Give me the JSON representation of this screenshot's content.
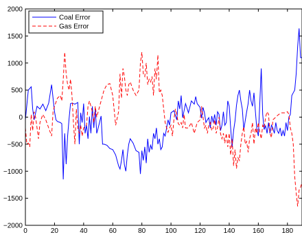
{
  "chart_data": {
    "type": "line",
    "title": "",
    "xlabel": "",
    "ylabel": "",
    "xlim": [
      0,
      190
    ],
    "ylim": [
      -2000,
      2000
    ],
    "xticks": [
      0,
      20,
      40,
      60,
      80,
      100,
      120,
      140,
      160,
      180
    ],
    "yticks": [
      -2000,
      -1500,
      -1000,
      -500,
      0,
      500,
      1000,
      1500,
      2000
    ],
    "grid": false,
    "legend_position": "top-left",
    "series": [
      {
        "name": "Coal Error",
        "color": "#0000ff",
        "style": "solid",
        "points": [
          [
            0,
            -50
          ],
          [
            2,
            500
          ],
          [
            4,
            560
          ],
          [
            5,
            150
          ],
          [
            6,
            -50
          ],
          [
            8,
            200
          ],
          [
            10,
            150
          ],
          [
            12,
            240
          ],
          [
            14,
            120
          ],
          [
            16,
            260
          ],
          [
            18,
            600
          ],
          [
            19,
            350
          ],
          [
            20,
            100
          ],
          [
            21,
            -50
          ],
          [
            22,
            -80
          ],
          [
            24,
            -100
          ],
          [
            25,
            -120
          ],
          [
            26,
            -1150
          ],
          [
            27,
            -300
          ],
          [
            28,
            -870
          ],
          [
            29,
            -350
          ],
          [
            30,
            -30
          ],
          [
            31,
            250
          ],
          [
            32,
            260
          ],
          [
            34,
            240
          ],
          [
            36,
            270
          ],
          [
            37,
            -500
          ],
          [
            38,
            80
          ],
          [
            39,
            -100
          ],
          [
            40,
            250
          ],
          [
            41,
            -300
          ],
          [
            42,
            -150
          ],
          [
            43,
            -400
          ],
          [
            44,
            10
          ],
          [
            45,
            -300
          ],
          [
            46,
            200
          ],
          [
            47,
            -200
          ],
          [
            48,
            150
          ],
          [
            49,
            -300
          ],
          [
            50,
            -200
          ],
          [
            52,
            20
          ],
          [
            53,
            -500
          ],
          [
            54,
            -500
          ],
          [
            56,
            -520
          ],
          [
            58,
            -580
          ],
          [
            60,
            -600
          ],
          [
            62,
            -700
          ],
          [
            64,
            -900
          ],
          [
            65,
            -960
          ],
          [
            66,
            -800
          ],
          [
            67,
            -600
          ],
          [
            68,
            -880
          ],
          [
            69,
            -1000
          ],
          [
            70,
            -700
          ],
          [
            71,
            -500
          ],
          [
            72,
            -400
          ],
          [
            74,
            -480
          ],
          [
            76,
            -620
          ],
          [
            78,
            -650
          ],
          [
            79,
            -1050
          ],
          [
            80,
            -620
          ],
          [
            81,
            -800
          ],
          [
            82,
            -550
          ],
          [
            83,
            -850
          ],
          [
            84,
            -400
          ],
          [
            85,
            -650
          ],
          [
            86,
            -520
          ],
          [
            87,
            -600
          ],
          [
            88,
            -300
          ],
          [
            89,
            -400
          ],
          [
            90,
            -200
          ],
          [
            91,
            -500
          ],
          [
            92,
            -400
          ],
          [
            93,
            -600
          ],
          [
            94,
            -550
          ],
          [
            95,
            -300
          ],
          [
            96,
            -350
          ],
          [
            97,
            -200
          ],
          [
            98,
            -50
          ],
          [
            99,
            -150
          ],
          [
            100,
            80
          ],
          [
            102,
            120
          ],
          [
            104,
            -50
          ],
          [
            105,
            300
          ],
          [
            106,
            150
          ],
          [
            107,
            400
          ],
          [
            108,
            -10
          ],
          [
            110,
            250
          ],
          [
            112,
            80
          ],
          [
            114,
            300
          ],
          [
            116,
            240
          ],
          [
            117,
            380
          ],
          [
            118,
            250
          ],
          [
            120,
            180
          ],
          [
            121,
            -20
          ],
          [
            122,
            180
          ],
          [
            123,
            80
          ],
          [
            124,
            -100
          ],
          [
            125,
            -50
          ],
          [
            126,
            -10
          ],
          [
            127,
            -200
          ],
          [
            128,
            20
          ],
          [
            129,
            -100
          ],
          [
            130,
            50
          ],
          [
            131,
            -150
          ],
          [
            132,
            100
          ],
          [
            133,
            50
          ],
          [
            134,
            -250
          ],
          [
            135,
            -150
          ],
          [
            136,
            100
          ],
          [
            137,
            -150
          ],
          [
            138,
            -100
          ],
          [
            139,
            300
          ],
          [
            140,
            200
          ],
          [
            141,
            -200
          ],
          [
            142,
            -550
          ],
          [
            143,
            -250
          ],
          [
            144,
            -70
          ],
          [
            145,
            220
          ],
          [
            146,
            400
          ],
          [
            147,
            500
          ],
          [
            148,
            300
          ],
          [
            149,
            150
          ],
          [
            150,
            -230
          ],
          [
            152,
            100
          ],
          [
            153,
            250
          ],
          [
            154,
            500
          ],
          [
            155,
            300
          ],
          [
            156,
            200
          ],
          [
            157,
            450
          ],
          [
            158,
            100
          ],
          [
            159,
            -230
          ],
          [
            160,
            -350
          ],
          [
            161,
            250
          ],
          [
            162,
            900
          ],
          [
            163,
            50
          ],
          [
            164,
            -230
          ],
          [
            165,
            -160
          ],
          [
            166,
            -300
          ],
          [
            167,
            -100
          ],
          [
            168,
            -300
          ],
          [
            169,
            -150
          ],
          [
            170,
            -200
          ],
          [
            171,
            -300
          ],
          [
            172,
            -100
          ],
          [
            173,
            -250
          ],
          [
            174,
            -300
          ],
          [
            175,
            -200
          ],
          [
            176,
            -350
          ],
          [
            177,
            -250
          ],
          [
            178,
            -350
          ],
          [
            179,
            -100
          ],
          [
            180,
            -250
          ],
          [
            181,
            0
          ],
          [
            182,
            50
          ],
          [
            183,
            400
          ],
          [
            184,
            450
          ],
          [
            185,
            500
          ],
          [
            186,
            800
          ],
          [
            187,
            1300
          ],
          [
            188,
            1640
          ],
          [
            189,
            1100
          ],
          [
            190,
            1100
          ]
        ]
      },
      {
        "name": "Gas Error",
        "color": "#ff0000",
        "style": "dashed",
        "points": [
          [
            0,
            -200
          ],
          [
            1,
            -500
          ],
          [
            2,
            -480
          ],
          [
            3,
            -550
          ],
          [
            4,
            50
          ],
          [
            5,
            -250
          ],
          [
            6,
            100
          ],
          [
            7,
            0
          ],
          [
            8,
            -200
          ],
          [
            9,
            -400
          ],
          [
            10,
            -100
          ],
          [
            12,
            50
          ],
          [
            14,
            -50
          ],
          [
            16,
            -200
          ],
          [
            18,
            -350
          ],
          [
            19,
            100
          ],
          [
            20,
            200
          ],
          [
            22,
            350
          ],
          [
            24,
            400
          ],
          [
            25,
            300
          ],
          [
            26,
            700
          ],
          [
            27,
            1200
          ],
          [
            28,
            800
          ],
          [
            29,
            600
          ],
          [
            30,
            500
          ],
          [
            31,
            700
          ],
          [
            32,
            400
          ],
          [
            33,
            -100
          ],
          [
            34,
            -500
          ],
          [
            35,
            150
          ],
          [
            36,
            -200
          ],
          [
            37,
            -300
          ],
          [
            38,
            -150
          ],
          [
            39,
            -350
          ],
          [
            40,
            -200
          ],
          [
            42,
            -150
          ],
          [
            43,
            200
          ],
          [
            44,
            300
          ],
          [
            45,
            200
          ],
          [
            46,
            100
          ],
          [
            47,
            -100
          ],
          [
            48,
            200
          ],
          [
            49,
            0
          ],
          [
            50,
            100
          ],
          [
            52,
            300
          ],
          [
            54,
            500
          ],
          [
            56,
            600
          ],
          [
            58,
            620
          ],
          [
            60,
            400
          ],
          [
            62,
            -150
          ],
          [
            64,
            100
          ],
          [
            65,
            800
          ],
          [
            66,
            350
          ],
          [
            67,
            900
          ],
          [
            68,
            750
          ],
          [
            69,
            500
          ],
          [
            70,
            400
          ],
          [
            71,
            600
          ],
          [
            72,
            650
          ],
          [
            74,
            500
          ],
          [
            76,
            400
          ],
          [
            78,
            500
          ],
          [
            79,
            1000
          ],
          [
            80,
            1200
          ],
          [
            81,
            800
          ],
          [
            82,
            750
          ],
          [
            83,
            1000
          ],
          [
            84,
            600
          ],
          [
            85,
            700
          ],
          [
            86,
            650
          ],
          [
            87,
            750
          ],
          [
            88,
            400
          ],
          [
            89,
            900
          ],
          [
            90,
            700
          ],
          [
            91,
            1150
          ],
          [
            92,
            450
          ],
          [
            93,
            500
          ],
          [
            94,
            400
          ],
          [
            95,
            150
          ],
          [
            96,
            -100
          ],
          [
            97,
            -200
          ],
          [
            98,
            -280
          ],
          [
            99,
            -200
          ],
          [
            100,
            -150
          ],
          [
            101,
            -350
          ],
          [
            102,
            -50
          ],
          [
            103,
            150
          ],
          [
            104,
            50
          ],
          [
            105,
            -120
          ],
          [
            106,
            -150
          ],
          [
            107,
            -100
          ],
          [
            108,
            -200
          ],
          [
            109,
            50
          ],
          [
            110,
            -200
          ],
          [
            112,
            -200
          ],
          [
            114,
            -100
          ],
          [
            116,
            -300
          ],
          [
            118,
            -100
          ],
          [
            120,
            -50
          ],
          [
            121,
            200
          ],
          [
            122,
            0
          ],
          [
            123,
            -200
          ],
          [
            124,
            -150
          ],
          [
            125,
            -300
          ],
          [
            126,
            -150
          ],
          [
            127,
            -100
          ],
          [
            128,
            -250
          ],
          [
            129,
            -200
          ],
          [
            130,
            -50
          ],
          [
            131,
            -300
          ],
          [
            132,
            -200
          ],
          [
            133,
            0
          ],
          [
            134,
            -300
          ],
          [
            135,
            -400
          ],
          [
            136,
            -300
          ],
          [
            137,
            -480
          ],
          [
            138,
            -300
          ],
          [
            139,
            -550
          ],
          [
            140,
            -300
          ],
          [
            141,
            -700
          ],
          [
            142,
            -400
          ],
          [
            143,
            -900
          ],
          [
            144,
            -600
          ],
          [
            145,
            -950
          ],
          [
            146,
            -750
          ],
          [
            147,
            -800
          ],
          [
            148,
            -500
          ],
          [
            149,
            -300
          ],
          [
            150,
            -180
          ],
          [
            151,
            -500
          ],
          [
            152,
            -450
          ],
          [
            153,
            -650
          ],
          [
            154,
            -400
          ],
          [
            155,
            -300
          ],
          [
            156,
            -100
          ],
          [
            157,
            -500
          ],
          [
            158,
            -200
          ],
          [
            159,
            -300
          ],
          [
            160,
            -100
          ],
          [
            161,
            -280
          ],
          [
            162,
            -400
          ],
          [
            163,
            -150
          ],
          [
            164,
            -200
          ],
          [
            165,
            0
          ],
          [
            166,
            100
          ],
          [
            167,
            50
          ],
          [
            168,
            -300
          ],
          [
            169,
            -380
          ],
          [
            170,
            -50
          ],
          [
            172,
            0
          ],
          [
            174,
            50
          ],
          [
            176,
            80
          ],
          [
            178,
            80
          ],
          [
            180,
            100
          ],
          [
            181,
            50
          ],
          [
            182,
            -200
          ],
          [
            183,
            -300
          ],
          [
            184,
            -500
          ],
          [
            185,
            -1100
          ],
          [
            186,
            -1400
          ],
          [
            187,
            -1650
          ],
          [
            188,
            -1350
          ],
          [
            189,
            -1300
          ],
          [
            190,
            -1200
          ]
        ]
      }
    ]
  }
}
